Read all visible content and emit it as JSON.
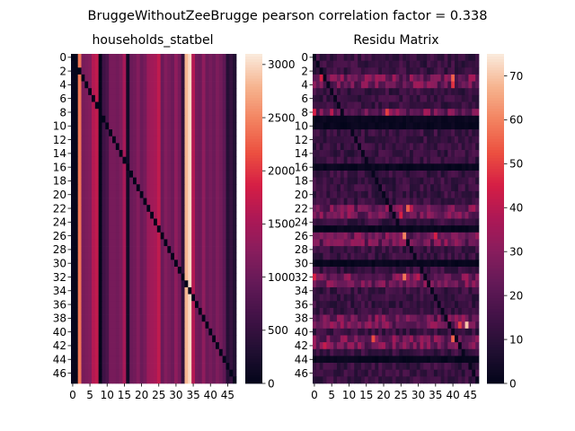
{
  "figure": {
    "suptitle": "BruggeWithoutZeeBrugge pearson correlation factor = 0.338"
  },
  "chart_data": [
    {
      "type": "heatmap",
      "title": "households_statbel",
      "rows": 48,
      "cols": 48,
      "row_tick_labels": [
        "0",
        "2",
        "4",
        "6",
        "8",
        "10",
        "12",
        "14",
        "16",
        "18",
        "20",
        "22",
        "24",
        "26",
        "28",
        "30",
        "32",
        "34",
        "36",
        "38",
        "40",
        "42",
        "44",
        "46"
      ],
      "col_tick_labels": [
        "0",
        "5",
        "10",
        "15",
        "20",
        "25",
        "30",
        "35",
        "40",
        "45"
      ],
      "diagonal_value": 0,
      "column_values": [
        60,
        30,
        2400,
        1100,
        1150,
        1200,
        1600,
        1700,
        0,
        600,
        700,
        1100,
        1100,
        1050,
        1150,
        1500,
        150,
        1000,
        1050,
        1200,
        1000,
        1100,
        1400,
        1450,
        1500,
        1700,
        1000,
        1200,
        1100,
        1000,
        1300,
        1100,
        450,
        2800,
        3000,
        1600,
        1050,
        1000,
        1300,
        1000,
        1100,
        1000,
        1150,
        1050,
        900,
        350,
        500,
        300
      ],
      "colorbar": {
        "min": 0,
        "max": 3100,
        "ticks": [
          "0",
          "500",
          "1000",
          "1500",
          "2000",
          "2500",
          "3000"
        ]
      },
      "colormap": "rocket"
    },
    {
      "type": "heatmap",
      "title": "Residu Matrix",
      "rows": 48,
      "cols": 48,
      "row_tick_labels": [
        "0",
        "2",
        "4",
        "6",
        "8",
        "10",
        "12",
        "14",
        "16",
        "18",
        "20",
        "22",
        "24",
        "26",
        "28",
        "30",
        "32",
        "34",
        "36",
        "38",
        "40",
        "42",
        "44",
        "46"
      ],
      "col_tick_labels": [
        "0",
        "5",
        "10",
        "15",
        "20",
        "25",
        "30",
        "35",
        "40",
        "45"
      ],
      "dark_rows": [
        9,
        10,
        16,
        25,
        30,
        44
      ],
      "bright_rows": [
        3,
        4,
        8,
        22,
        23,
        26,
        27,
        32,
        33,
        38,
        39,
        41,
        42
      ],
      "hot_cells": [
        [
          3,
          2,
          45
        ],
        [
          3,
          40,
          55
        ],
        [
          4,
          40,
          48
        ],
        [
          8,
          0,
          45
        ],
        [
          8,
          5,
          40
        ],
        [
          8,
          21,
          50
        ],
        [
          22,
          27,
          55
        ],
        [
          22,
          28,
          40
        ],
        [
          23,
          25,
          45
        ],
        [
          26,
          26,
          60
        ],
        [
          26,
          35,
          45
        ],
        [
          32,
          0,
          45
        ],
        [
          32,
          26,
          58
        ],
        [
          32,
          30,
          40
        ],
        [
          39,
          44,
          70
        ],
        [
          39,
          42,
          50
        ],
        [
          41,
          17,
          52
        ],
        [
          41,
          40,
          55
        ],
        [
          42,
          3,
          42
        ]
      ],
      "colorbar": {
        "min": 0,
        "max": 75,
        "ticks": [
          "0",
          "10",
          "20",
          "30",
          "40",
          "50",
          "60",
          "70"
        ]
      },
      "colormap": "rocket"
    }
  ]
}
